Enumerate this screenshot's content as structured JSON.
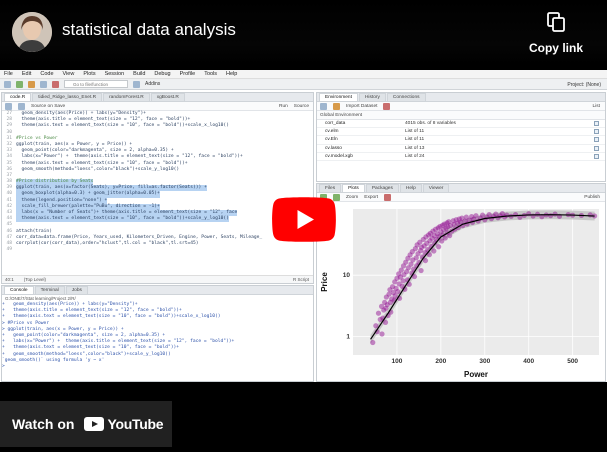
{
  "video": {
    "title": "statistical data analysis",
    "copy_link_label": "Copy link",
    "watch_on_label": "Watch on",
    "youtube_label": "YouTube"
  },
  "rstudio": {
    "menu": [
      "File",
      "Edit",
      "Code",
      "View",
      "Plots",
      "Session",
      "Build",
      "Debug",
      "Profile",
      "Tools",
      "Help"
    ],
    "goto_placeholder": "Go to file/function",
    "addins_label": "Addins",
    "project_label": "Project: (None)",
    "source_tabs": [
      "code.R",
      "tidied_Ridge_lasso_Enet.R",
      "randomForest.R",
      "xgBoost.R"
    ],
    "source_toolbar": [
      "Source on Save",
      "Run",
      "Source"
    ],
    "code_lines": [
      {
        "n": "27",
        "t": "  geom_density(aes(Price)) + labs(y=\"Density\")+",
        "cls": ""
      },
      {
        "n": "28",
        "t": "  theme(axis.title = element_text(size = \"12\", face = \"bold\"))+",
        "cls": ""
      },
      {
        "n": "29",
        "t": "  theme(axis.text = element_text(size = \"10\", face = \"bold\"))+scale_x_log10()",
        "cls": ""
      },
      {
        "n": "30",
        "t": "",
        "cls": ""
      },
      {
        "n": "31",
        "t": "#Price vs Power",
        "cls": "cm"
      },
      {
        "n": "32",
        "t": "ggplot(train, aes(x = Power, y = Price)) +",
        "cls": ""
      },
      {
        "n": "33",
        "t": "  geom_point(color=\"darkmagenta\", size = 2, alpha=0.35) +",
        "cls": ""
      },
      {
        "n": "34",
        "t": "  labs(x=\"Power\") +  theme(axis.title = element_text(size = \"12\", face = \"bold\"))+",
        "cls": ""
      },
      {
        "n": "35",
        "t": "  theme(axis.text = element_text(size = \"10\", face = \"bold\"))+",
        "cls": ""
      },
      {
        "n": "36",
        "t": "  geom_smooth(method=\"loess\",color=\"black\")+scale_y_log10()",
        "cls": ""
      },
      {
        "n": "37",
        "t": "",
        "cls": ""
      },
      {
        "n": "38",
        "t": "#Price distribution by Seats",
        "cls": "cm sel"
      },
      {
        "n": "39",
        "t": "ggplot(train, aes(x=factor(Seats), y=Price, fill=as.factor(Seats))) +",
        "cls": "sel"
      },
      {
        "n": "40",
        "t": "  geom_boxplot(alpha=0.3) + geom_jitter(alpha=0.05)+",
        "cls": "sel"
      },
      {
        "n": "41",
        "t": "  theme(legend.position=\"none\") +",
        "cls": "sel"
      },
      {
        "n": "42",
        "t": "  scale_fill_brewer(palette=\"PuBu\", direction = -1)+",
        "cls": "sel"
      },
      {
        "n": "43",
        "t": "  labs(x = \"Number of Seats\")+ theme(axis.title = element_text(size = \"12\", face",
        "cls": "sel"
      },
      {
        "n": "44",
        "t": "  theme(axis.text = element_text(size = \"10\", face = \"bold\"))+scale_y_log10()",
        "cls": "sel"
      },
      {
        "n": "45",
        "t": "",
        "cls": ""
      },
      {
        "n": "46",
        "t": "attach(train)",
        "cls": ""
      },
      {
        "n": "47",
        "t": "corr_data=data.frame(Price, Years_used, Kilometers_Driven, Engine, Power, Seats, Mileage_",
        "cls": ""
      },
      {
        "n": "48",
        "t": "corrplot(cor(corr_data),order=\"hclust\",tl.col = \"black\",tl.srt=45)",
        "cls": ""
      },
      {
        "n": "49",
        "t": "",
        "cls": ""
      }
    ],
    "source_status": {
      "pos": "40:1",
      "level": "(Top Level)",
      "type": "R Script"
    },
    "console_tabs": [
      "Console",
      "Terminal",
      "Jobs"
    ],
    "console_path": "G:/ONE/7/Stat learning/Project 2/R/",
    "console_lines": [
      "+   geom_density(aes(Price)) + labs(y=\"Density\")+",
      "+   theme(axis.title = element_text(size = \"12\", face = \"bold\"))+",
      "+   theme(axis.text = element_text(size = \"10\", face = \"bold\"))+scale_x_log10()",
      "> #Price vs Power",
      "> ggplot(train, aes(x = Power, y = Price)) +",
      "+   geom_point(color=\"darkmagenta\", size = 2, alpha=0.35) +",
      "+   labs(x=\"Power\") +  theme(axis.title = element_text(size = \"12\", face = \"bold\"))+",
      "+   theme(axis.text = element_text(size = \"10\", face = \"bold\"))+",
      "+   geom_smooth(method=\"loess\",color=\"black\")+scale_y_log10()",
      "`geom_smooth()` using formula 'y ~ x'",
      ">"
    ],
    "env_tabs": [
      "Environment",
      "History",
      "Connections"
    ],
    "env_toolbar": [
      "Import Dataset",
      "List"
    ],
    "env_scope": "Global Environment",
    "env_rows": [
      {
        "name": "corr_data",
        "value": "4015 obs. of 8 variables"
      },
      {
        "name": "cv.elm",
        "value": "List of 11"
      },
      {
        "name": "cv.Eln",
        "value": "List of 11"
      },
      {
        "name": "cv.lasso",
        "value": "List of 13"
      },
      {
        "name": "cv.model.xgb",
        "value": "List of 24"
      }
    ],
    "plot_tabs": [
      "Files",
      "Plots",
      "Packages",
      "Help",
      "Viewer"
    ],
    "plot_toolbar": [
      "Zoom",
      "Export",
      "Publish"
    ]
  },
  "chart_data": {
    "type": "scatter",
    "title": "",
    "xlabel": "Power",
    "ylabel": "Price",
    "xlim": [
      0,
      560
    ],
    "x_ticks": [
      100,
      200,
      300,
      400,
      500
    ],
    "y_scale": "log10",
    "ylim": [
      0.5,
      120
    ],
    "y_ticks": [
      {
        "value": 1,
        "label": "1"
      },
      {
        "value": 10,
        "label": "10"
      }
    ],
    "point_color": "#8b008b",
    "smooth_color": "#000000",
    "smooth_band_color": "#b9b9b9",
    "points": [
      [
        45,
        0.8
      ],
      [
        52,
        1.5
      ],
      [
        55,
        1.2
      ],
      [
        58,
        2.4
      ],
      [
        62,
        1.9
      ],
      [
        65,
        3.1
      ],
      [
        66,
        1.1
      ],
      [
        68,
        2.0
      ],
      [
        70,
        2.7
      ],
      [
        72,
        3.6
      ],
      [
        74,
        1.7
      ],
      [
        75,
        2.9
      ],
      [
        76,
        4.4
      ],
      [
        78,
        3.3
      ],
      [
        80,
        2.2
      ],
      [
        82,
        4.9
      ],
      [
        84,
        5.8
      ],
      [
        85,
        3.6
      ],
      [
        86,
        2.5
      ],
      [
        88,
        4.1
      ],
      [
        90,
        6.5
      ],
      [
        92,
        5.2
      ],
      [
        94,
        3.9
      ],
      [
        95,
        7.8
      ],
      [
        96,
        4.6
      ],
      [
        98,
        6.1
      ],
      [
        100,
        8.9
      ],
      [
        102,
        5.4
      ],
      [
        104,
        10.5
      ],
      [
        105,
        7.2
      ],
      [
        106,
        4.2
      ],
      [
        108,
        9.3
      ],
      [
        110,
        12.1
      ],
      [
        112,
        6.6
      ],
      [
        114,
        8.1
      ],
      [
        115,
        14.2
      ],
      [
        116,
        10.2
      ],
      [
        118,
        5.9
      ],
      [
        120,
        16.3
      ],
      [
        122,
        11.4
      ],
      [
        124,
        8.4
      ],
      [
        125,
        18.9
      ],
      [
        126,
        13.2
      ],
      [
        128,
        7.1
      ],
      [
        130,
        21.5
      ],
      [
        132,
        15.1
      ],
      [
        134,
        10.8
      ],
      [
        135,
        24.2
      ],
      [
        136,
        17.7
      ],
      [
        138,
        12.6
      ],
      [
        140,
        9.5
      ],
      [
        142,
        27.1
      ],
      [
        144,
        19.2
      ],
      [
        145,
        14.3
      ],
      [
        146,
        31.2
      ],
      [
        148,
        22.4
      ],
      [
        150,
        16.1
      ],
      [
        152,
        34.4
      ],
      [
        154,
        25.2
      ],
      [
        155,
        11.9
      ],
      [
        156,
        28.5
      ],
      [
        158,
        19.8
      ],
      [
        160,
        38.3
      ],
      [
        162,
        30.1
      ],
      [
        164,
        23.4
      ],
      [
        165,
        17.3
      ],
      [
        166,
        42.1
      ],
      [
        168,
        33.2
      ],
      [
        170,
        26.1
      ],
      [
        172,
        45.3
      ],
      [
        174,
        21.6
      ],
      [
        175,
        36.4
      ],
      [
        176,
        48.2
      ],
      [
        178,
        29.5
      ],
      [
        180,
        40.1
      ],
      [
        182,
        52.4
      ],
      [
        184,
        24.8
      ],
      [
        185,
        44.2
      ],
      [
        186,
        33.6
      ],
      [
        188,
        56.1
      ],
      [
        190,
        38.4
      ],
      [
        192,
        47.3
      ],
      [
        194,
        59.2
      ],
      [
        195,
        29.1
      ],
      [
        196,
        42.6
      ],
      [
        198,
        62.3
      ],
      [
        200,
        51.2
      ],
      [
        202,
        36.1
      ],
      [
        204,
        65.4
      ],
      [
        205,
        45.5
      ],
      [
        206,
        55.6
      ],
      [
        208,
        68.1
      ],
      [
        210,
        40.3
      ],
      [
        212,
        58.4
      ],
      [
        214,
        71.2
      ],
      [
        215,
        49.2
      ],
      [
        216,
        61.5
      ],
      [
        218,
        74.3
      ],
      [
        220,
        44.1
      ],
      [
        222,
        64.6
      ],
      [
        225,
        52.2
      ],
      [
        228,
        77.1
      ],
      [
        230,
        67.3
      ],
      [
        232,
        56.4
      ],
      [
        235,
        80.2
      ],
      [
        238,
        70.5
      ],
      [
        240,
        60.1
      ],
      [
        242,
        82.4
      ],
      [
        245,
        73.3
      ],
      [
        248,
        85.3
      ],
      [
        250,
        64.2
      ],
      [
        255,
        76.1
      ],
      [
        258,
        88.4
      ],
      [
        260,
        68.3
      ],
      [
        265,
        79.2
      ],
      [
        270,
        90.1
      ],
      [
        272,
        72.4
      ],
      [
        275,
        82.3
      ],
      [
        280,
        93.2
      ],
      [
        285,
        76.5
      ],
      [
        290,
        85.1
      ],
      [
        295,
        95.4
      ],
      [
        300,
        80.2
      ],
      [
        305,
        88.3
      ],
      [
        310,
        97.1
      ],
      [
        315,
        83.4
      ],
      [
        320,
        91.2
      ],
      [
        325,
        99.3
      ],
      [
        330,
        86.5
      ],
      [
        335,
        93.1
      ],
      [
        340,
        101.2
      ],
      [
        345,
        89.3
      ],
      [
        350,
        95.4
      ],
      [
        360,
        91.2
      ],
      [
        370,
        97.3
      ],
      [
        380,
        88.1
      ],
      [
        390,
        94.2
      ],
      [
        400,
        100.3
      ],
      [
        410,
        92.1
      ],
      [
        420,
        98.4
      ],
      [
        430,
        90.2
      ],
      [
        440,
        96.1
      ],
      [
        450,
        93.4
      ],
      [
        460,
        99.2
      ],
      [
        470,
        91.1
      ],
      [
        490,
        97.3
      ],
      [
        500,
        95.1
      ],
      [
        520,
        94.2
      ],
      [
        540,
        96.3
      ],
      [
        550,
        92.4
      ]
    ],
    "smooth": [
      [
        40,
        0.9
      ],
      [
        80,
        2.4
      ],
      [
        120,
        6.8
      ],
      [
        160,
        19.0
      ],
      [
        200,
        42.0
      ],
      [
        250,
        68.0
      ],
      [
        300,
        84.0
      ],
      [
        350,
        92.0
      ],
      [
        400,
        96.0
      ],
      [
        450,
        97.0
      ],
      [
        500,
        95.5
      ],
      [
        550,
        92.0
      ]
    ]
  }
}
